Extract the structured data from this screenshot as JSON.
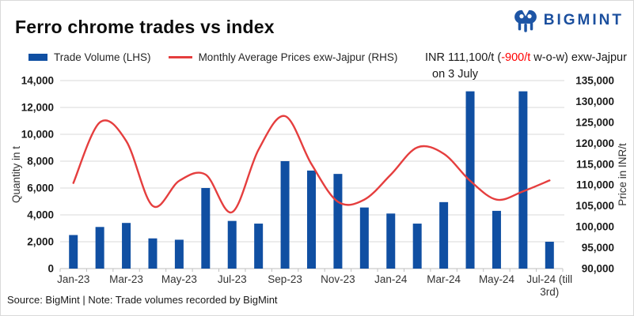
{
  "header": {
    "title": "Ferro chrome trades vs index",
    "logo_text": "BIGMINT",
    "logo_color": "#1d55a5"
  },
  "legend": {
    "items": [
      {
        "label": "Trade Volume (LHS)",
        "swatch": "bar",
        "color": "#104fa2"
      },
      {
        "label": "Monthly Average Prices exw-Jajpur (RHS)",
        "swatch": "line",
        "color": "#e53e3e"
      }
    ]
  },
  "annotation": {
    "line1_prefix": "INR 111,100/t  (",
    "line1_delta": "-900/t",
    "line1_suffix": " w-o-w) exw-Jajpur",
    "line2": "on 3 July",
    "delta_color": "#ff0000"
  },
  "footer": {
    "source": "Source: BigMint | Note: Trade volumes recorded by BigMint"
  },
  "chart_data": {
    "type": "combo",
    "title": "Ferro chrome trades vs index",
    "categories": [
      "Jan-23",
      "Feb-23",
      "Mar-23",
      "Apr-23",
      "May-23",
      "Jun-23",
      "Jul-23",
      "Aug-23",
      "Sep-23",
      "Oct-23",
      "Nov-23",
      "Dec-23",
      "Jan-24",
      "Feb-24",
      "Mar-24",
      "Apr-24",
      "May-24",
      "Jun-24",
      "Jul-24"
    ],
    "series": [
      {
        "name": "Trade Volume (LHS)",
        "type": "bar",
        "axis": "left",
        "color": "#104fa2",
        "values": [
          2500,
          3100,
          3400,
          2250,
          2150,
          6000,
          3550,
          3350,
          8000,
          7300,
          7050,
          4550,
          4100,
          3350,
          4950,
          13200,
          4300,
          13200,
          2000
        ]
      },
      {
        "name": "Monthly Average Prices exw-Jajpur (RHS)",
        "type": "line",
        "axis": "right",
        "color": "#e53e3e",
        "values": [
          110500,
          125000,
          120500,
          105000,
          111000,
          112500,
          103500,
          118500,
          126500,
          115000,
          106000,
          106500,
          112500,
          119000,
          117500,
          111000,
          106500,
          108500,
          111100
        ]
      }
    ],
    "ylabel_left": "Quantity in t",
    "ylabel_right": "Price in INR/t",
    "ylim_left": [
      0,
      14000
    ],
    "ytick_step_left": 2000,
    "ylim_right": [
      90000,
      135000
    ],
    "ytick_step_right": 5000,
    "xticks": [
      {
        "index": 0,
        "lines": [
          "Jan-23"
        ]
      },
      {
        "index": 2,
        "lines": [
          "Mar-23"
        ]
      },
      {
        "index": 4,
        "lines": [
          "May-23"
        ]
      },
      {
        "index": 6,
        "lines": [
          "Jul-23"
        ]
      },
      {
        "index": 8,
        "lines": [
          "Sep-23"
        ]
      },
      {
        "index": 10,
        "lines": [
          "Nov-23"
        ]
      },
      {
        "index": 12,
        "lines": [
          "Jan-24"
        ]
      },
      {
        "index": 14,
        "lines": [
          "Mar-24"
        ]
      },
      {
        "index": 16,
        "lines": [
          "May-24"
        ]
      },
      {
        "index": 18,
        "lines": [
          "Jul-24 (till",
          "3rd)"
        ]
      }
    ],
    "grid": true,
    "grid_color": "#d9d9d9",
    "axis_color": "#bfbfbf",
    "tick_label_color": "#1a1a1a",
    "xtick_label_color": "#333333",
    "legend_position": "top"
  }
}
